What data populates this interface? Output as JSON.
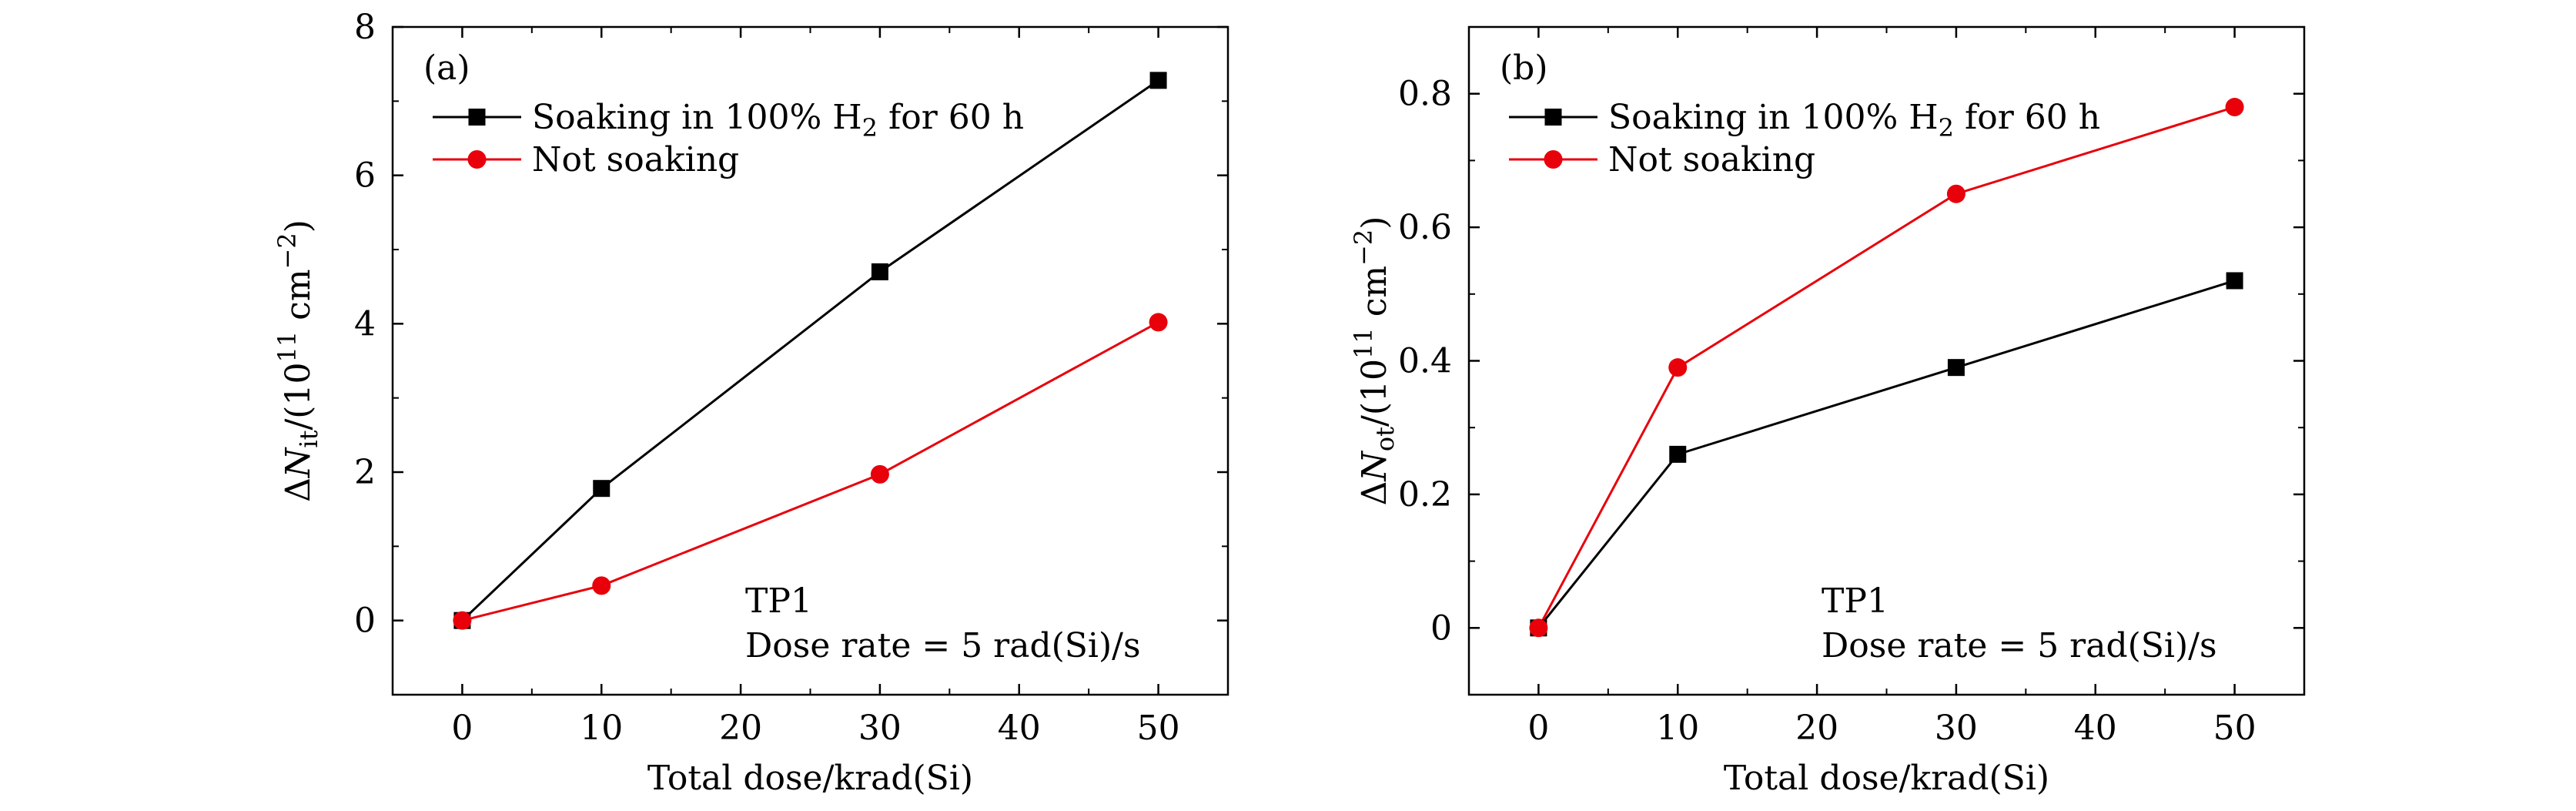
{
  "chart_data": [
    {
      "type": "line",
      "panel_label": "(a)",
      "x": [
        0,
        10,
        30,
        50
      ],
      "xlabel": "Total dose/krad(Si)",
      "ylabel": "ΔNit/(10^11 cm⁻²)",
      "ylabel_parts": {
        "prefix": "Δ",
        "symbol": "N",
        "sub": "it",
        "mid": "/(10",
        "sup1": "11",
        "unit": " cm",
        "sup2": "−2",
        "suffix": ")"
      },
      "xlim": [
        -5,
        55
      ],
      "ylim": [
        -1,
        8
      ],
      "xticks": [
        0,
        10,
        20,
        30,
        40,
        50
      ],
      "yticks": [
        0,
        2,
        4,
        6,
        8
      ],
      "series": [
        {
          "name": "Soaking in 100% H2 for 60 h",
          "name_parts": {
            "a": "Soaking in 100% H",
            "sub": "2",
            "b": " for 60 h"
          },
          "marker": "square",
          "color": "#000000",
          "values": [
            0,
            1.78,
            4.7,
            7.28
          ]
        },
        {
          "name": "Not soaking",
          "marker": "circle",
          "color": "#e8000b",
          "values": [
            0,
            0.47,
            1.97,
            4.02
          ]
        }
      ],
      "annotations": [
        "TP1",
        "Dose rate = 5 rad(Si)/s"
      ],
      "legend": "top-left",
      "grid": false
    },
    {
      "type": "line",
      "panel_label": "(b)",
      "x": [
        0,
        10,
        30,
        50
      ],
      "xlabel": "Total dose/krad(Si)",
      "ylabel": "ΔNot/(10^11 cm⁻²)",
      "ylabel_parts": {
        "prefix": "Δ",
        "symbol": "N",
        "sub": "ot",
        "mid": "/(10",
        "sup1": "11",
        "unit": " cm",
        "sup2": "−2",
        "suffix": ")"
      },
      "xlim": [
        -5,
        55
      ],
      "ylim": [
        -0.1,
        0.9
      ],
      "xticks": [
        0,
        10,
        20,
        30,
        40,
        50
      ],
      "yticks": [
        0,
        0.2,
        0.4,
        0.6,
        0.8
      ],
      "series": [
        {
          "name": "Soaking in 100% H2 for 60 h",
          "name_parts": {
            "a": "Soaking in 100% H",
            "sub": "2",
            "b": " for 60 h"
          },
          "marker": "square",
          "color": "#000000",
          "values": [
            0,
            0.26,
            0.39,
            0.52
          ]
        },
        {
          "name": "Not soaking",
          "marker": "circle",
          "color": "#e8000b",
          "values": [
            0,
            0.39,
            0.65,
            0.78
          ]
        }
      ],
      "annotations": [
        "TP1",
        "Dose rate = 5 rad(Si)/s"
      ],
      "legend": "top-left",
      "grid": false
    }
  ]
}
